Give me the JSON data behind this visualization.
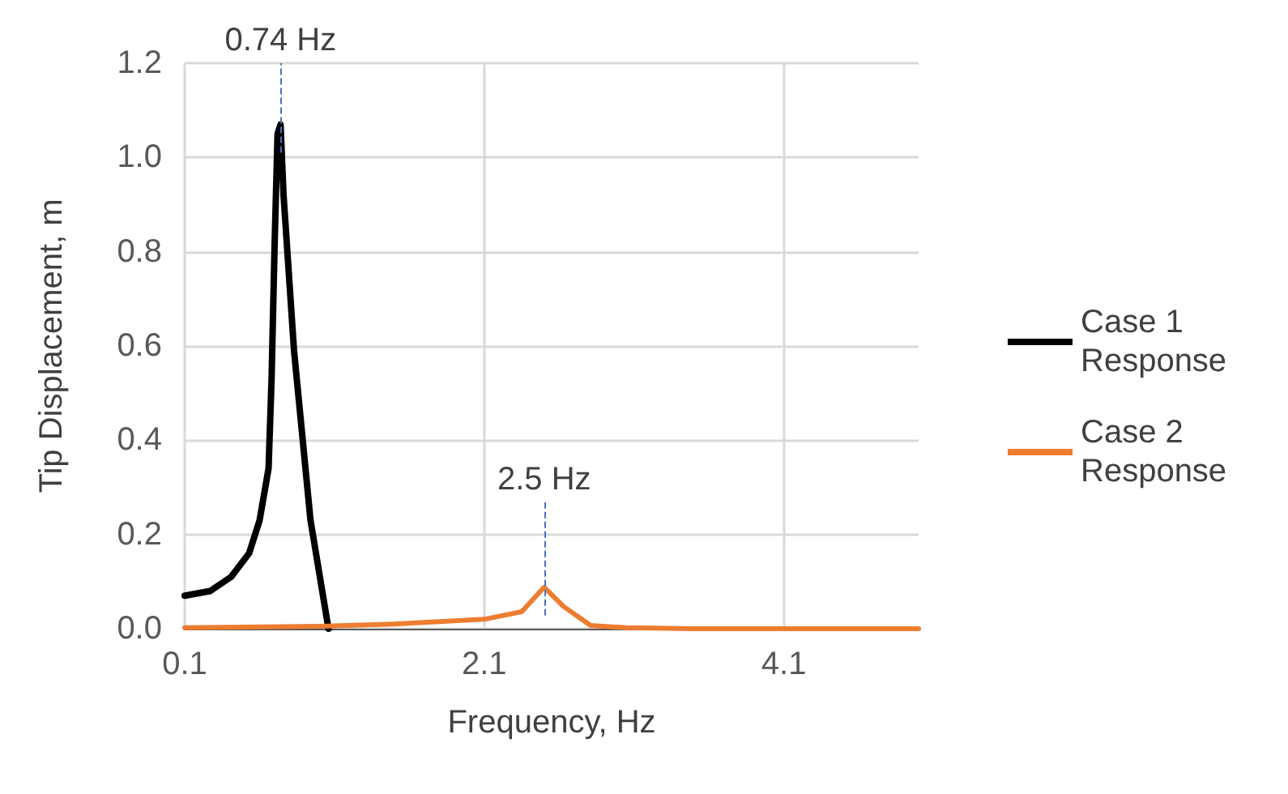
{
  "chart_data": {
    "type": "line",
    "xlabel": "Frequency, Hz",
    "ylabel": "Tip Displacement, m",
    "xlim": [
      0.1,
      5.0
    ],
    "xticks": [
      0.1,
      2.1,
      4.1
    ],
    "ylim": [
      0,
      1.2
    ],
    "yticks": [
      {
        "value": 0,
        "label": "0.0"
      },
      {
        "value": 0.2,
        "label": "0.2"
      },
      {
        "value": 0.4,
        "label": "0.4"
      },
      {
        "value": 0.6,
        "label": "0.6"
      },
      {
        "value": 0.8,
        "label": "0.8"
      },
      {
        "value": 1.0,
        "label": "1.0"
      },
      {
        "value": 1.2,
        "label": "1.2"
      }
    ],
    "grid": true,
    "legend": "right",
    "marker": "none",
    "line_style": "solid",
    "annotations": [
      {
        "text": "0.74 Hz",
        "x": 0.74,
        "y": 1.07
      },
      {
        "text": "2.5 Hz",
        "x": 2.5,
        "y": 0.088
      }
    ],
    "series": [
      {
        "name": "Case 1 Response",
        "color": "#000000",
        "x": [
          0.1,
          0.27,
          0.41,
          0.53,
          0.6,
          0.66,
          0.68,
          0.7,
          0.72,
          0.74,
          0.76,
          0.83,
          0.94,
          1.06
        ],
        "values": [
          0.07,
          0.08,
          0.11,
          0.16,
          0.23,
          0.34,
          0.53,
          0.81,
          1.05,
          1.07,
          0.92,
          0.59,
          0.23,
          0
        ]
      },
      {
        "name": "Case 2 Response",
        "color": "#ed7d31",
        "x": [
          0.1,
          1.0,
          1.5,
          1.8,
          2.1,
          2.35,
          2.5,
          2.63,
          2.81,
          3.05,
          3.5,
          5.0
        ],
        "values": [
          0.002,
          0.005,
          0.01,
          0.015,
          0.02,
          0.036,
          0.088,
          0.047,
          0.007,
          0.002,
          0,
          0
        ]
      }
    ]
  }
}
